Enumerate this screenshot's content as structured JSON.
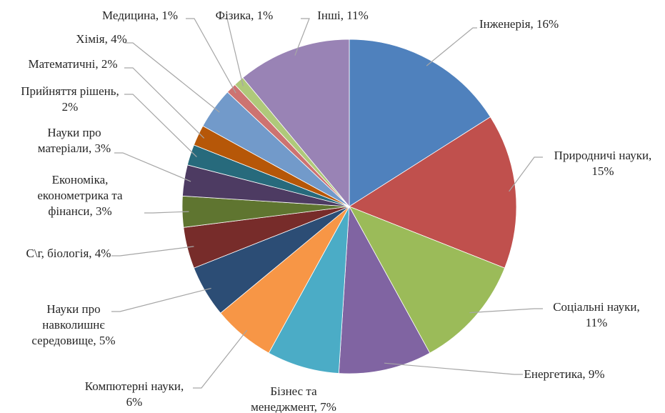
{
  "chart_data": {
    "type": "pie",
    "title": "",
    "start_angle_deg": 0,
    "direction": "clockwise",
    "series": [
      {
        "categories": [
          "Інженерія",
          "Природничі науки",
          "Соціальні науки",
          "Енергетика",
          "Бізнес та менеджмент",
          "Компютерні науки",
          "Науки про навколишнє середовище",
          "С\\г, біологія",
          "Економіка, економетрика та фінанси",
          "Науки про матеріали",
          "Прийняття рішень",
          "Математичні",
          "Хімія",
          "Медицина",
          "Фізика",
          "Інші"
        ],
        "values": [
          16,
          15,
          11,
          9,
          7,
          6,
          5,
          4,
          3,
          3,
          2,
          2,
          4,
          1,
          1,
          11
        ]
      }
    ],
    "slice_colors": [
      "#4F81BD",
      "#C0504D",
      "#9BBB59",
      "#8064A2",
      "#4BACC6",
      "#F79646",
      "#2C4D75",
      "#772C2A",
      "#5F7530",
      "#4D3B62",
      "#276A7C",
      "#B65708",
      "#729ACA",
      "#CD7371",
      "#AFC97A",
      "#9983B5"
    ],
    "data_labels": [
      {
        "lines": [
          "Інженерія, 16%"
        ]
      },
      {
        "lines": [
          "Природничі науки,",
          "15%"
        ]
      },
      {
        "lines": [
          "Соціальні науки,",
          "11%"
        ]
      },
      {
        "lines": [
          "Енергетика, 9%"
        ]
      },
      {
        "lines": [
          "Бізнес та",
          "менеджмент, 7%"
        ]
      },
      {
        "lines": [
          "Компютерні науки,",
          "6%"
        ]
      },
      {
        "lines": [
          "Науки про",
          "навколишнє",
          "середовище, 5%"
        ]
      },
      {
        "lines": [
          "С\\г, біологія, 4%"
        ]
      },
      {
        "lines": [
          "Економіка,",
          "економетрика та",
          "фінанси, 3%"
        ]
      },
      {
        "lines": [
          "Науки про",
          "матеріали, 3%"
        ]
      },
      {
        "lines": [
          "Прийняття рішень,",
          "2%"
        ]
      },
      {
        "lines": [
          "Математичні, 2%"
        ]
      },
      {
        "lines": [
          "Хімія, 4%"
        ]
      },
      {
        "lines": [
          "Медицина, 1%"
        ]
      },
      {
        "lines": [
          "Фізика, 1%"
        ]
      },
      {
        "lines": [
          "Інші, 11%"
        ]
      }
    ],
    "legend": "none",
    "leader_lines": true
  }
}
